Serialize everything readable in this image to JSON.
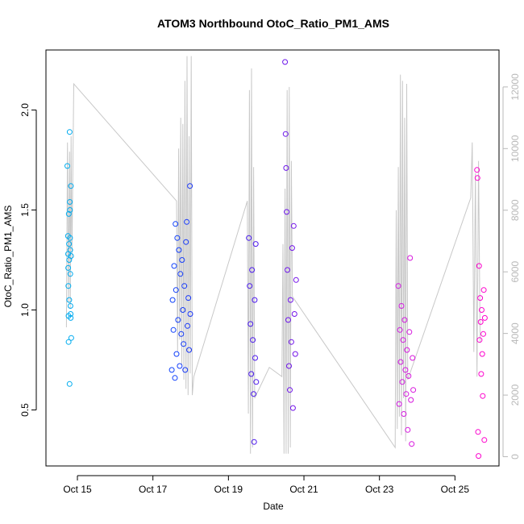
{
  "chart_data": {
    "type": "scatter",
    "title": "ATOM3 Northbound OtoC_Ratio_PM1_AMS",
    "xlabel": "Date",
    "ylabel": "OtoC_Ratio_PM1_AMS",
    "x_ticks": [
      "Oct 15",
      "Oct 17",
      "Oct 19",
      "Oct 21",
      "Oct 23",
      "Oct 25"
    ],
    "y_ticks": [
      "0.5",
      "1.0",
      "1.5",
      "2.0"
    ],
    "y2_ticks": [
      "0",
      "2000",
      "4000",
      "6000",
      "8000",
      "10000",
      "12000"
    ],
    "xlim": [
      "2016-10-14T04:00",
      "2016-10-26T04:00"
    ],
    "ylim": [
      0.22,
      2.3
    ],
    "y2lim": [
      -300,
      13200
    ],
    "grid": false,
    "colors": {
      "scatter_gradient": [
        "#00aeef",
        "#0050ff",
        "#3a1cf0",
        "#8a10e8",
        "#d21ae0",
        "#ff00cc"
      ],
      "secondary_series": "#c8c8c8",
      "secondary_axis": "#b8b8b8"
    },
    "series": [
      {
        "marker": "open-circle",
        "points": [
          [
            "2016-10-14T17:36",
            1.72
          ],
          [
            "2016-10-14T18:00",
            1.37
          ],
          [
            "2016-10-14T18:05",
            1.28
          ],
          [
            "2016-10-14T18:10",
            1.21
          ],
          [
            "2016-10-14T18:15",
            1.12
          ],
          [
            "2016-10-14T18:20",
            0.97
          ],
          [
            "2016-10-14T18:25",
            0.84
          ],
          [
            "2016-10-14T18:30",
            1.48
          ],
          [
            "2016-10-14T18:40",
            1.33
          ],
          [
            "2016-10-14T18:45",
            1.25
          ],
          [
            "2016-10-14T18:50",
            1.05
          ],
          [
            "2016-10-14T19:00",
            0.63
          ],
          [
            "2016-10-14T19:05",
            1.89
          ],
          [
            "2016-10-14T19:10",
            1.54
          ],
          [
            "2016-10-14T19:15",
            1.5
          ],
          [
            "2016-10-14T19:20",
            1.36
          ],
          [
            "2016-10-14T19:25",
            1.3
          ],
          [
            "2016-10-14T19:30",
            1.18
          ],
          [
            "2016-10-14T19:35",
            1.02
          ],
          [
            "2016-10-14T19:40",
            0.98
          ],
          [
            "2016-10-14T19:45",
            0.96
          ],
          [
            "2016-10-14T19:50",
            1.62
          ],
          [
            "2016-10-14T19:55",
            1.27
          ],
          [
            "2016-10-14T20:05",
            0.86
          ],
          [
            "2016-10-17T12:00",
            0.7
          ],
          [
            "2016-10-17T12:30",
            1.05
          ],
          [
            "2016-10-17T13:00",
            0.9
          ],
          [
            "2016-10-17T13:30",
            1.22
          ],
          [
            "2016-10-17T14:00",
            0.66
          ],
          [
            "2016-10-17T14:20",
            1.43
          ],
          [
            "2016-10-17T14:40",
            1.1
          ],
          [
            "2016-10-17T15:00",
            0.78
          ],
          [
            "2016-10-17T15:30",
            1.36
          ],
          [
            "2016-10-17T16:00",
            0.95
          ],
          [
            "2016-10-17T16:30",
            1.3
          ],
          [
            "2016-10-17T17:00",
            0.72
          ],
          [
            "2016-10-17T17:30",
            1.18
          ],
          [
            "2016-10-17T18:00",
            0.88
          ],
          [
            "2016-10-17T18:30",
            1.25
          ],
          [
            "2016-10-17T19:00",
            1.0
          ],
          [
            "2016-10-17T19:30",
            0.83
          ],
          [
            "2016-10-17T20:00",
            1.12
          ],
          [
            "2016-10-17T20:30",
            0.7
          ],
          [
            "2016-10-17T21:00",
            1.34
          ],
          [
            "2016-10-17T21:30",
            1.44
          ],
          [
            "2016-10-17T22:00",
            0.92
          ],
          [
            "2016-10-17T22:30",
            1.06
          ],
          [
            "2016-10-17T23:00",
            0.8
          ],
          [
            "2016-10-17T23:30",
            1.62
          ],
          [
            "2016-10-17T23:45",
            0.98
          ],
          [
            "2016-10-19T13:00",
            1.36
          ],
          [
            "2016-10-19T13:30",
            1.12
          ],
          [
            "2016-10-19T14:00",
            0.93
          ],
          [
            "2016-10-19T14:30",
            0.68
          ],
          [
            "2016-10-19T15:00",
            1.2
          ],
          [
            "2016-10-19T15:30",
            0.85
          ],
          [
            "2016-10-19T16:00",
            0.58
          ],
          [
            "2016-10-19T16:20",
            0.34
          ],
          [
            "2016-10-19T16:40",
            1.05
          ],
          [
            "2016-10-19T17:00",
            0.76
          ],
          [
            "2016-10-19T17:20",
            1.33
          ],
          [
            "2016-10-19T17:40",
            0.64
          ],
          [
            "2016-10-20T12:00",
            2.24
          ],
          [
            "2016-10-20T12:20",
            1.88
          ],
          [
            "2016-10-20T12:40",
            1.71
          ],
          [
            "2016-10-20T13:00",
            1.49
          ],
          [
            "2016-10-20T13:30",
            1.2
          ],
          [
            "2016-10-20T14:00",
            0.95
          ],
          [
            "2016-10-20T14:30",
            0.72
          ],
          [
            "2016-10-20T15:00",
            0.6
          ],
          [
            "2016-10-20T15:30",
            1.05
          ],
          [
            "2016-10-20T16:00",
            0.84
          ],
          [
            "2016-10-20T16:30",
            1.31
          ],
          [
            "2016-10-20T17:00",
            0.51
          ],
          [
            "2016-10-20T17:30",
            1.42
          ],
          [
            "2016-10-20T18:00",
            0.98
          ],
          [
            "2016-10-20T18:30",
            0.78
          ],
          [
            "2016-10-20T19:00",
            1.15
          ],
          [
            "2016-10-23T12:00",
            1.12
          ],
          [
            "2016-10-23T12:30",
            0.53
          ],
          [
            "2016-10-23T13:00",
            0.9
          ],
          [
            "2016-10-23T13:30",
            0.74
          ],
          [
            "2016-10-23T14:00",
            1.02
          ],
          [
            "2016-10-23T14:30",
            0.64
          ],
          [
            "2016-10-23T15:00",
            0.85
          ],
          [
            "2016-10-23T15:30",
            0.48
          ],
          [
            "2016-10-23T16:00",
            0.95
          ],
          [
            "2016-10-23T16:30",
            0.7
          ],
          [
            "2016-10-23T17:00",
            0.58
          ],
          [
            "2016-10-23T17:30",
            0.8
          ],
          [
            "2016-10-23T18:00",
            0.4
          ],
          [
            "2016-10-23T18:30",
            0.67
          ],
          [
            "2016-10-23T19:00",
            0.89
          ],
          [
            "2016-10-23T19:30",
            1.26
          ],
          [
            "2016-10-23T20:00",
            0.55
          ],
          [
            "2016-10-23T20:30",
            0.33
          ],
          [
            "2016-10-23T21:00",
            0.76
          ],
          [
            "2016-10-23T21:30",
            0.6
          ],
          [
            "2016-10-25T14:00",
            1.7
          ],
          [
            "2016-10-25T14:20",
            1.66
          ],
          [
            "2016-10-25T14:40",
            0.39
          ],
          [
            "2016-10-25T15:00",
            0.27
          ],
          [
            "2016-10-25T15:20",
            1.22
          ],
          [
            "2016-10-25T15:40",
            0.85
          ],
          [
            "2016-10-25T16:00",
            1.06
          ],
          [
            "2016-10-25T16:20",
            0.94
          ],
          [
            "2016-10-25T16:40",
            0.68
          ],
          [
            "2016-10-25T17:00",
            1.0
          ],
          [
            "2016-10-25T17:20",
            0.78
          ],
          [
            "2016-10-25T17:40",
            0.57
          ],
          [
            "2016-10-25T18:00",
            0.88
          ],
          [
            "2016-10-25T18:20",
            1.1
          ],
          [
            "2016-10-25T18:40",
            0.35
          ],
          [
            "2016-10-25T19:00",
            0.96
          ]
        ]
      },
      {
        "axis": "right",
        "style": "line",
        "points": [
          [
            "2016-10-14T17:00",
            4200
          ],
          [
            "2016-10-14T17:40",
            10200
          ],
          [
            "2016-10-14T18:20",
            5000
          ],
          [
            "2016-10-14T19:00",
            9900
          ],
          [
            "2016-10-14T19:30",
            4800
          ],
          [
            "2016-10-14T20:00",
            10400
          ],
          [
            "2016-10-14T20:30",
            6400
          ],
          [
            "2016-10-14T21:40",
            12100
          ],
          [
            "2016-10-17T15:00",
            8300
          ],
          [
            "2016-10-17T15:40",
            3400
          ],
          [
            "2016-10-17T16:20",
            10000
          ],
          [
            "2016-10-17T17:00",
            3800
          ],
          [
            "2016-10-17T17:40",
            11000
          ],
          [
            "2016-10-17T18:20",
            3000
          ],
          [
            "2016-10-17T19:00",
            10800
          ],
          [
            "2016-10-17T19:40",
            2500
          ],
          [
            "2016-10-17T20:20",
            12200
          ],
          [
            "2016-10-17T21:00",
            2200
          ],
          [
            "2016-10-17T21:40",
            13000
          ],
          [
            "2016-10-17T22:20",
            2000
          ],
          [
            "2016-10-17T23:00",
            10400
          ],
          [
            "2016-10-17T23:40",
            2700
          ],
          [
            "2016-10-18T00:20",
            13000
          ],
          [
            "2016-10-18T01:00",
            2000
          ],
          [
            "2016-10-18T02:00",
            2600
          ],
          [
            "2016-10-19T12:00",
            8300
          ],
          [
            "2016-10-19T12:40",
            1400
          ],
          [
            "2016-10-19T13:20",
            11900
          ],
          [
            "2016-10-19T14:00",
            100
          ],
          [
            "2016-10-19T14:40",
            12600
          ],
          [
            "2016-10-19T15:20",
            300
          ],
          [
            "2016-10-19T16:00",
            9400
          ],
          [
            "2016-10-19T16:40",
            1900
          ],
          [
            "2016-10-20T02:00",
            2900
          ],
          [
            "2016-10-20T10:00",
            2600
          ],
          [
            "2016-10-20T10:40",
            6900
          ],
          [
            "2016-10-20T11:20",
            100
          ],
          [
            "2016-10-20T12:00",
            8700
          ],
          [
            "2016-10-20T12:40",
            100
          ],
          [
            "2016-10-20T13:20",
            11900
          ],
          [
            "2016-10-20T14:00",
            100
          ],
          [
            "2016-10-20T14:40",
            12000
          ],
          [
            "2016-10-20T15:20",
            300
          ],
          [
            "2016-10-20T16:00",
            9600
          ],
          [
            "2016-10-20T16:40",
            5200
          ],
          [
            "2016-10-23T10:00",
            300
          ],
          [
            "2016-10-23T10:40",
            8000
          ],
          [
            "2016-10-23T11:20",
            900
          ],
          [
            "2016-10-23T12:00",
            9400
          ],
          [
            "2016-10-23T12:40",
            1300
          ],
          [
            "2016-10-23T13:20",
            12400
          ],
          [
            "2016-10-23T14:00",
            700
          ],
          [
            "2016-10-23T14:40",
            12200
          ],
          [
            "2016-10-23T15:20",
            1900
          ],
          [
            "2016-10-23T16:00",
            11000
          ],
          [
            "2016-10-23T16:40",
            500
          ],
          [
            "2016-10-23T17:20",
            12100
          ],
          [
            "2016-10-23T18:00",
            2500
          ],
          [
            "2016-10-25T10:00",
            8400
          ],
          [
            "2016-10-25T11:00",
            10200
          ],
          [
            "2016-10-25T12:00",
            3400
          ],
          [
            "2016-10-25T13:00",
            9200
          ],
          [
            "2016-10-25T14:00",
            2600
          ],
          [
            "2016-10-25T15:00",
            9600
          ],
          [
            "2016-10-25T16:00",
            3700
          ]
        ]
      }
    ]
  }
}
